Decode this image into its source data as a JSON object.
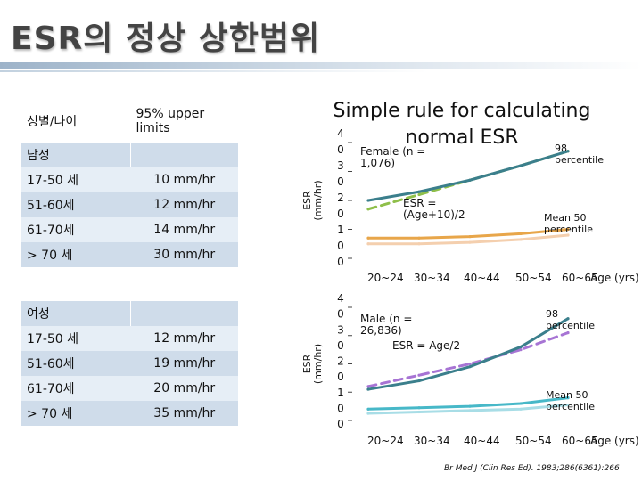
{
  "slide": {
    "title": "ESR의 정상 상한범위",
    "citation": "Br Med J (Clin Res Ed). 1983;286(6361):266"
  },
  "table": {
    "header": {
      "col1": "성별/나이",
      "col2": "95% upper limits"
    },
    "male": {
      "label": "남성",
      "rows": [
        {
          "age": "17-50 세",
          "limit": "10 mm/hr"
        },
        {
          "age": "51-60세",
          "limit": "12 mm/hr"
        },
        {
          "age": "61-70세",
          "limit": "14 mm/hr"
        },
        {
          "age": "> 70 세",
          "limit": "30 mm/hr"
        }
      ]
    },
    "female": {
      "label": "여성",
      "rows": [
        {
          "age": "17-50 세",
          "limit": "12 mm/hr"
        },
        {
          "age": "51-60세",
          "limit": "19 mm/hr"
        },
        {
          "age": "61-70세",
          "limit": "20 mm/hr"
        },
        {
          "age": "> 70 세",
          "limit": "35 mm/hr"
        }
      ]
    }
  },
  "colors": {
    "green_dashed": "#8fbf4a",
    "teal": "#3b7f8c",
    "orange": "#e8a64a",
    "peach": "#f4cfae",
    "purple_dashed": "#a774d4",
    "cyan": "#47b8c8",
    "light_cyan": "#a8dde6",
    "table_dark": "#cfdcea",
    "table_light": "#e6eef6"
  },
  "chart_data": [
    {
      "type": "line",
      "title": "Simple rule for calculating normal ESR",
      "ylabel": "ESR (mm/hr)",
      "xlabel": "Age (yrs)",
      "categories": [
        "20~24",
        "30~34",
        "40~44",
        "50~54",
        "60~65"
      ],
      "ytick_labels": [
        "4 0",
        "3 0",
        "2 0",
        "1 0",
        "0"
      ],
      "ylim": [
        0,
        40
      ],
      "annotations": [
        "Female (n = 1,076)",
        "ESR = (Age+10)/2",
        "98 percentile",
        "Mean 50 percentile"
      ],
      "series": [
        {
          "values": [
            17,
            22,
            27,
            32,
            37
          ],
          "style": "dashed",
          "color": "green_dashed"
        },
        {
          "values": [
            20,
            23,
            27,
            32,
            37
          ],
          "style": "solid",
          "color": "teal"
        },
        {
          "values": [
            7,
            7,
            7.5,
            8.5,
            10
          ],
          "style": "solid",
          "color": "orange"
        },
        {
          "values": [
            5,
            5,
            5.5,
            6.5,
            8
          ],
          "style": "solid",
          "color": "peach"
        }
      ]
    },
    {
      "type": "line",
      "ylabel": "ESR (mm/hr)",
      "xlabel": "Age (yrs)",
      "categories": [
        "20~24",
        "30~34",
        "40~44",
        "50~54",
        "60~65"
      ],
      "ytick_labels": [
        "4 0",
        "3 0",
        "2 0",
        "1 0",
        "0"
      ],
      "ylim": [
        0,
        40
      ],
      "annotations": [
        "Male (n = 26,836)",
        "ESR = Age/2",
        "98 percentile",
        "Mean 50 percentile"
      ],
      "series": [
        {
          "values": [
            12,
            16,
            20,
            25,
            31
          ],
          "style": "dashed",
          "color": "purple_dashed"
        },
        {
          "values": [
            11,
            14,
            19,
            26,
            36
          ],
          "style": "solid",
          "color": "teal"
        },
        {
          "values": [
            4,
            4.5,
            5,
            6,
            8
          ],
          "style": "solid",
          "color": "cyan"
        },
        {
          "values": [
            2.5,
            3,
            3.5,
            4,
            5.5
          ],
          "style": "solid",
          "color": "light_cyan"
        }
      ]
    }
  ]
}
